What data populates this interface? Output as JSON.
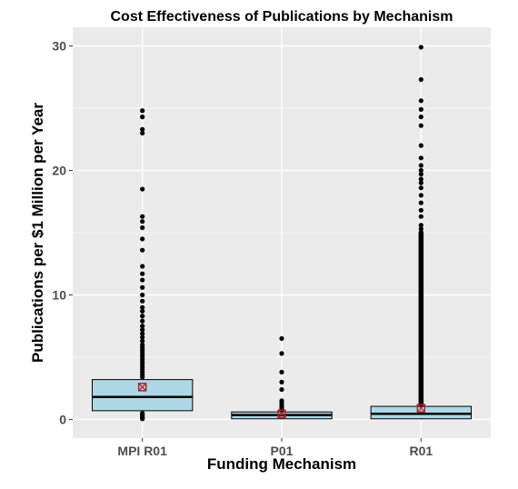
{
  "chart_data": {
    "type": "box",
    "title": "Cost Effectiveness of Publications by Mechanism",
    "xlabel": "Funding Mechanism",
    "ylabel": "Publications per $1 Million per Year",
    "categories": [
      "MPI R01",
      "P01",
      "R01"
    ],
    "y_ticks": [
      0,
      10,
      20,
      30
    ],
    "ylim": [
      -1.5,
      31.5
    ],
    "grid": true,
    "colors": {
      "panel": "#ebebeb",
      "grid": "#ffffff",
      "box_fill": "#add8e6",
      "outlier": "#000000",
      "mean_marker": "#b22222"
    },
    "boxes": [
      {
        "category": "MPI R01",
        "q1": 0.7,
        "median": 1.8,
        "q3": 3.2,
        "whisker_low": 0.0,
        "whisker_high": 3.3,
        "mean": 2.6,
        "outliers": [
          0.05,
          0.15,
          0.25,
          0.35,
          0.5,
          3.4,
          3.6,
          3.8,
          4.0,
          4.2,
          4.4,
          4.6,
          4.8,
          5.0,
          5.2,
          5.4,
          5.6,
          5.8,
          6.0,
          6.3,
          6.6,
          6.9,
          7.2,
          7.5,
          7.9,
          8.3,
          8.7,
          9.0,
          9.5,
          10.0,
          10.6,
          11.2,
          11.7,
          12.3,
          13.6,
          14.5,
          15.4,
          15.9,
          16.3,
          18.5,
          23.0,
          23.3,
          24.3,
          24.8
        ]
      },
      {
        "category": "P01",
        "q1": 0.05,
        "median": 0.35,
        "q3": 0.6,
        "whisker_low": 0.0,
        "whisker_high": 0.7,
        "mean": 0.45,
        "outliers": [
          0.8,
          0.95,
          1.1,
          1.3,
          1.5,
          2.4,
          3.0,
          3.8,
          5.3,
          6.5
        ]
      },
      {
        "category": "R01",
        "q1": 0.05,
        "median": 0.45,
        "q3": 1.05,
        "whisker_low": 0.0,
        "whisker_high": 1.1,
        "mean": 0.9,
        "outliers_dense": [
          1.2,
          15.0
        ],
        "outliers": [
          15.3,
          15.6,
          16.3,
          16.8,
          17.4,
          18.0,
          18.6,
          19.0,
          19.3,
          19.7,
          20.0,
          20.4,
          21.0,
          22.0,
          23.6,
          24.3,
          24.9,
          25.6,
          27.3,
          29.9
        ]
      }
    ]
  }
}
